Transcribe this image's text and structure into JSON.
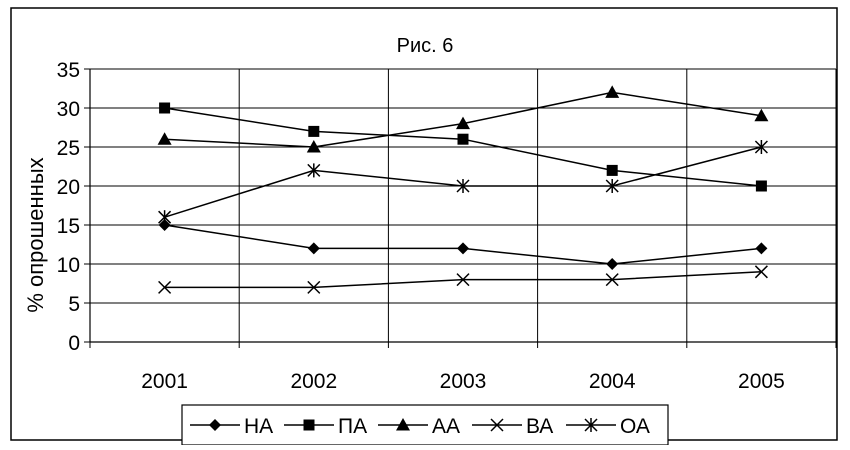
{
  "chart_data": {
    "type": "line",
    "title": "Рис. 6",
    "xlabel": "",
    "ylabel": "% опрошенных",
    "categories": [
      "2001",
      "2002",
      "2003",
      "2004",
      "2005"
    ],
    "ylim": [
      0,
      35
    ],
    "yticks": [
      0,
      5,
      10,
      15,
      20,
      25,
      30,
      35
    ],
    "grid": "horizontal and vertical",
    "legend_position": "bottom",
    "series": [
      {
        "name": "НА",
        "marker": "diamond",
        "values": [
          15,
          12,
          12,
          10,
          12
        ]
      },
      {
        "name": "ПА",
        "marker": "square",
        "values": [
          30,
          27,
          26,
          22,
          20
        ]
      },
      {
        "name": "АА",
        "marker": "triangle",
        "values": [
          26,
          25,
          28,
          32,
          29
        ]
      },
      {
        "name": "ВА",
        "marker": "x",
        "values": [
          7,
          7,
          8,
          8,
          9
        ]
      },
      {
        "name": "ОА",
        "marker": "star",
        "values": [
          16,
          22,
          20,
          20,
          25
        ]
      }
    ],
    "colors": {
      "line": "#000000",
      "grid": "#000000",
      "background": "#ffffff"
    }
  }
}
